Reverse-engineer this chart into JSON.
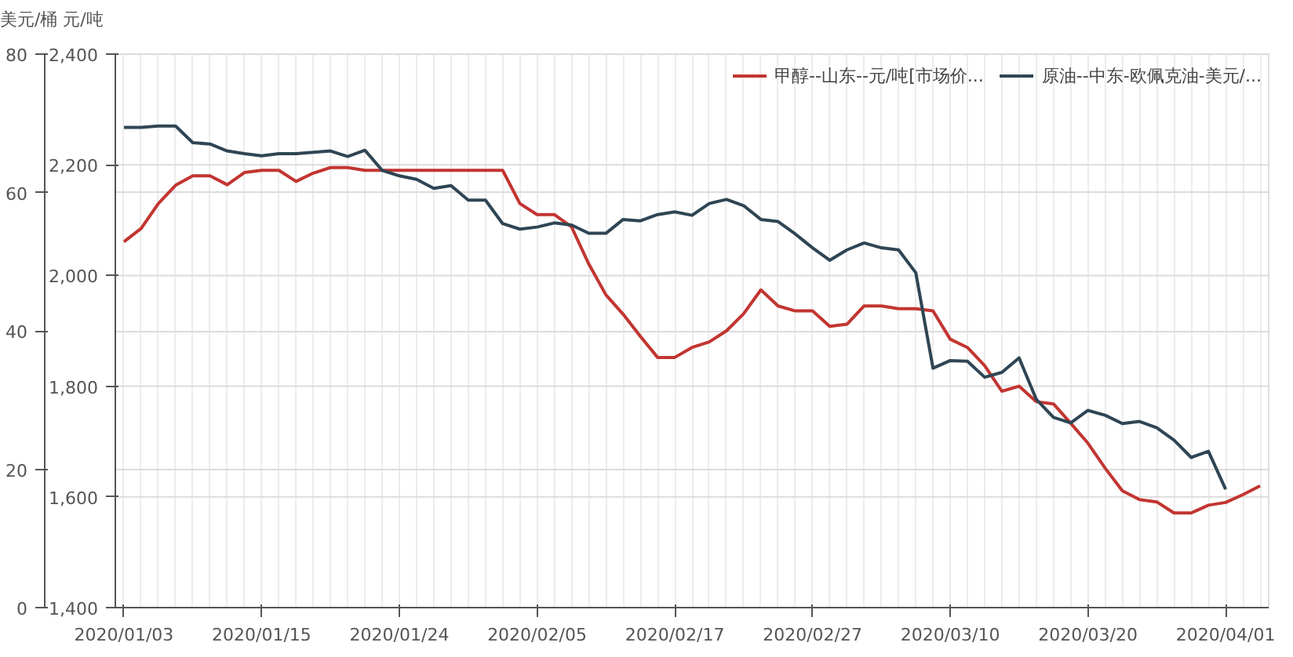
{
  "chart_data": {
    "type": "line",
    "ylabel": "美元/桶",
    "y2label": "元/吨",
    "categories": [
      "2020/01/03",
      null,
      null,
      null,
      null,
      null,
      null,
      null,
      "2020/01/15",
      null,
      null,
      null,
      null,
      null,
      null,
      null,
      "2020/01/24",
      null,
      null,
      null,
      null,
      null,
      null,
      null,
      "2020/02/05",
      null,
      null,
      null,
      null,
      null,
      null,
      null,
      "2020/02/17",
      null,
      null,
      null,
      null,
      null,
      null,
      null,
      "2020/02/27",
      null,
      null,
      null,
      null,
      null,
      null,
      null,
      "2020/03/10",
      null,
      null,
      null,
      null,
      null,
      null,
      null,
      "2020/03/20",
      null,
      null,
      null,
      null,
      null,
      null,
      null,
      "2020/04/01",
      null,
      null
    ],
    "series": [
      {
        "name": "甲醇--山东--元/吨[市场价...",
        "color": "#c23531",
        "axis": "y2",
        "values": [
          2061,
          2085,
          2130,
          2163,
          2180,
          2180,
          2164,
          2186,
          2190,
          2190,
          2170,
          2185,
          2195,
          2195,
          2190,
          2190,
          2190,
          2190,
          2190,
          2190,
          2190,
          2190,
          2190,
          2130,
          2110,
          2110,
          2088,
          2021,
          1965,
          1930,
          1890,
          1852,
          1852,
          1870,
          1880,
          1900,
          1931,
          1974,
          1945,
          1936,
          1936,
          1908,
          1912,
          1945,
          1945,
          1940,
          1940,
          1936,
          1885,
          1870,
          1837,
          1791,
          1800,
          1772,
          1768,
          1733,
          1697,
          1652,
          1611,
          1595,
          1591,
          1571,
          1571,
          1585,
          1590,
          1604,
          1620
        ]
      },
      {
        "name": "原油--中东-欧佩克油-美元/...",
        "color": "#2f4554",
        "values": [
          69.4,
          69.4,
          69.6,
          69.6,
          67.2,
          67.0,
          66.0,
          65.6,
          65.3,
          65.6,
          65.6,
          65.8,
          66.0,
          65.2,
          66.1,
          63.2,
          62.4,
          61.9,
          60.6,
          61.0,
          58.9,
          58.9,
          55.5,
          54.7,
          55.0,
          55.6,
          55.3,
          54.1,
          54.1,
          56.1,
          55.9,
          56.8,
          57.2,
          56.7,
          58.4,
          59.0,
          58.1,
          56.1,
          55.8,
          54.0,
          52.0,
          50.2,
          51.7,
          52.7,
          52.0,
          51.7,
          48.4,
          34.6,
          35.7,
          35.6,
          33.3,
          34.0,
          36.1,
          30.1,
          27.5,
          26.7,
          28.5,
          27.8,
          26.6,
          26.9,
          26.0,
          24.2,
          21.7,
          22.6,
          17.1,
          null,
          null
        ]
      }
    ],
    "ylim": [
      0,
      80
    ],
    "yticks": [
      0,
      20,
      40,
      60,
      80
    ],
    "y2lim": [
      1400,
      2400
    ],
    "y2ticks": [
      {
        "value": 1400,
        "label": "1,400"
      },
      {
        "value": 1600,
        "label": "1,600"
      },
      {
        "value": 1800,
        "label": "1,800"
      },
      {
        "value": 2000,
        "label": "2,000"
      },
      {
        "value": 2200,
        "label": "2,200"
      },
      {
        "value": 2400,
        "label": "2,400"
      }
    ],
    "grid": true,
    "legend": "top right"
  }
}
